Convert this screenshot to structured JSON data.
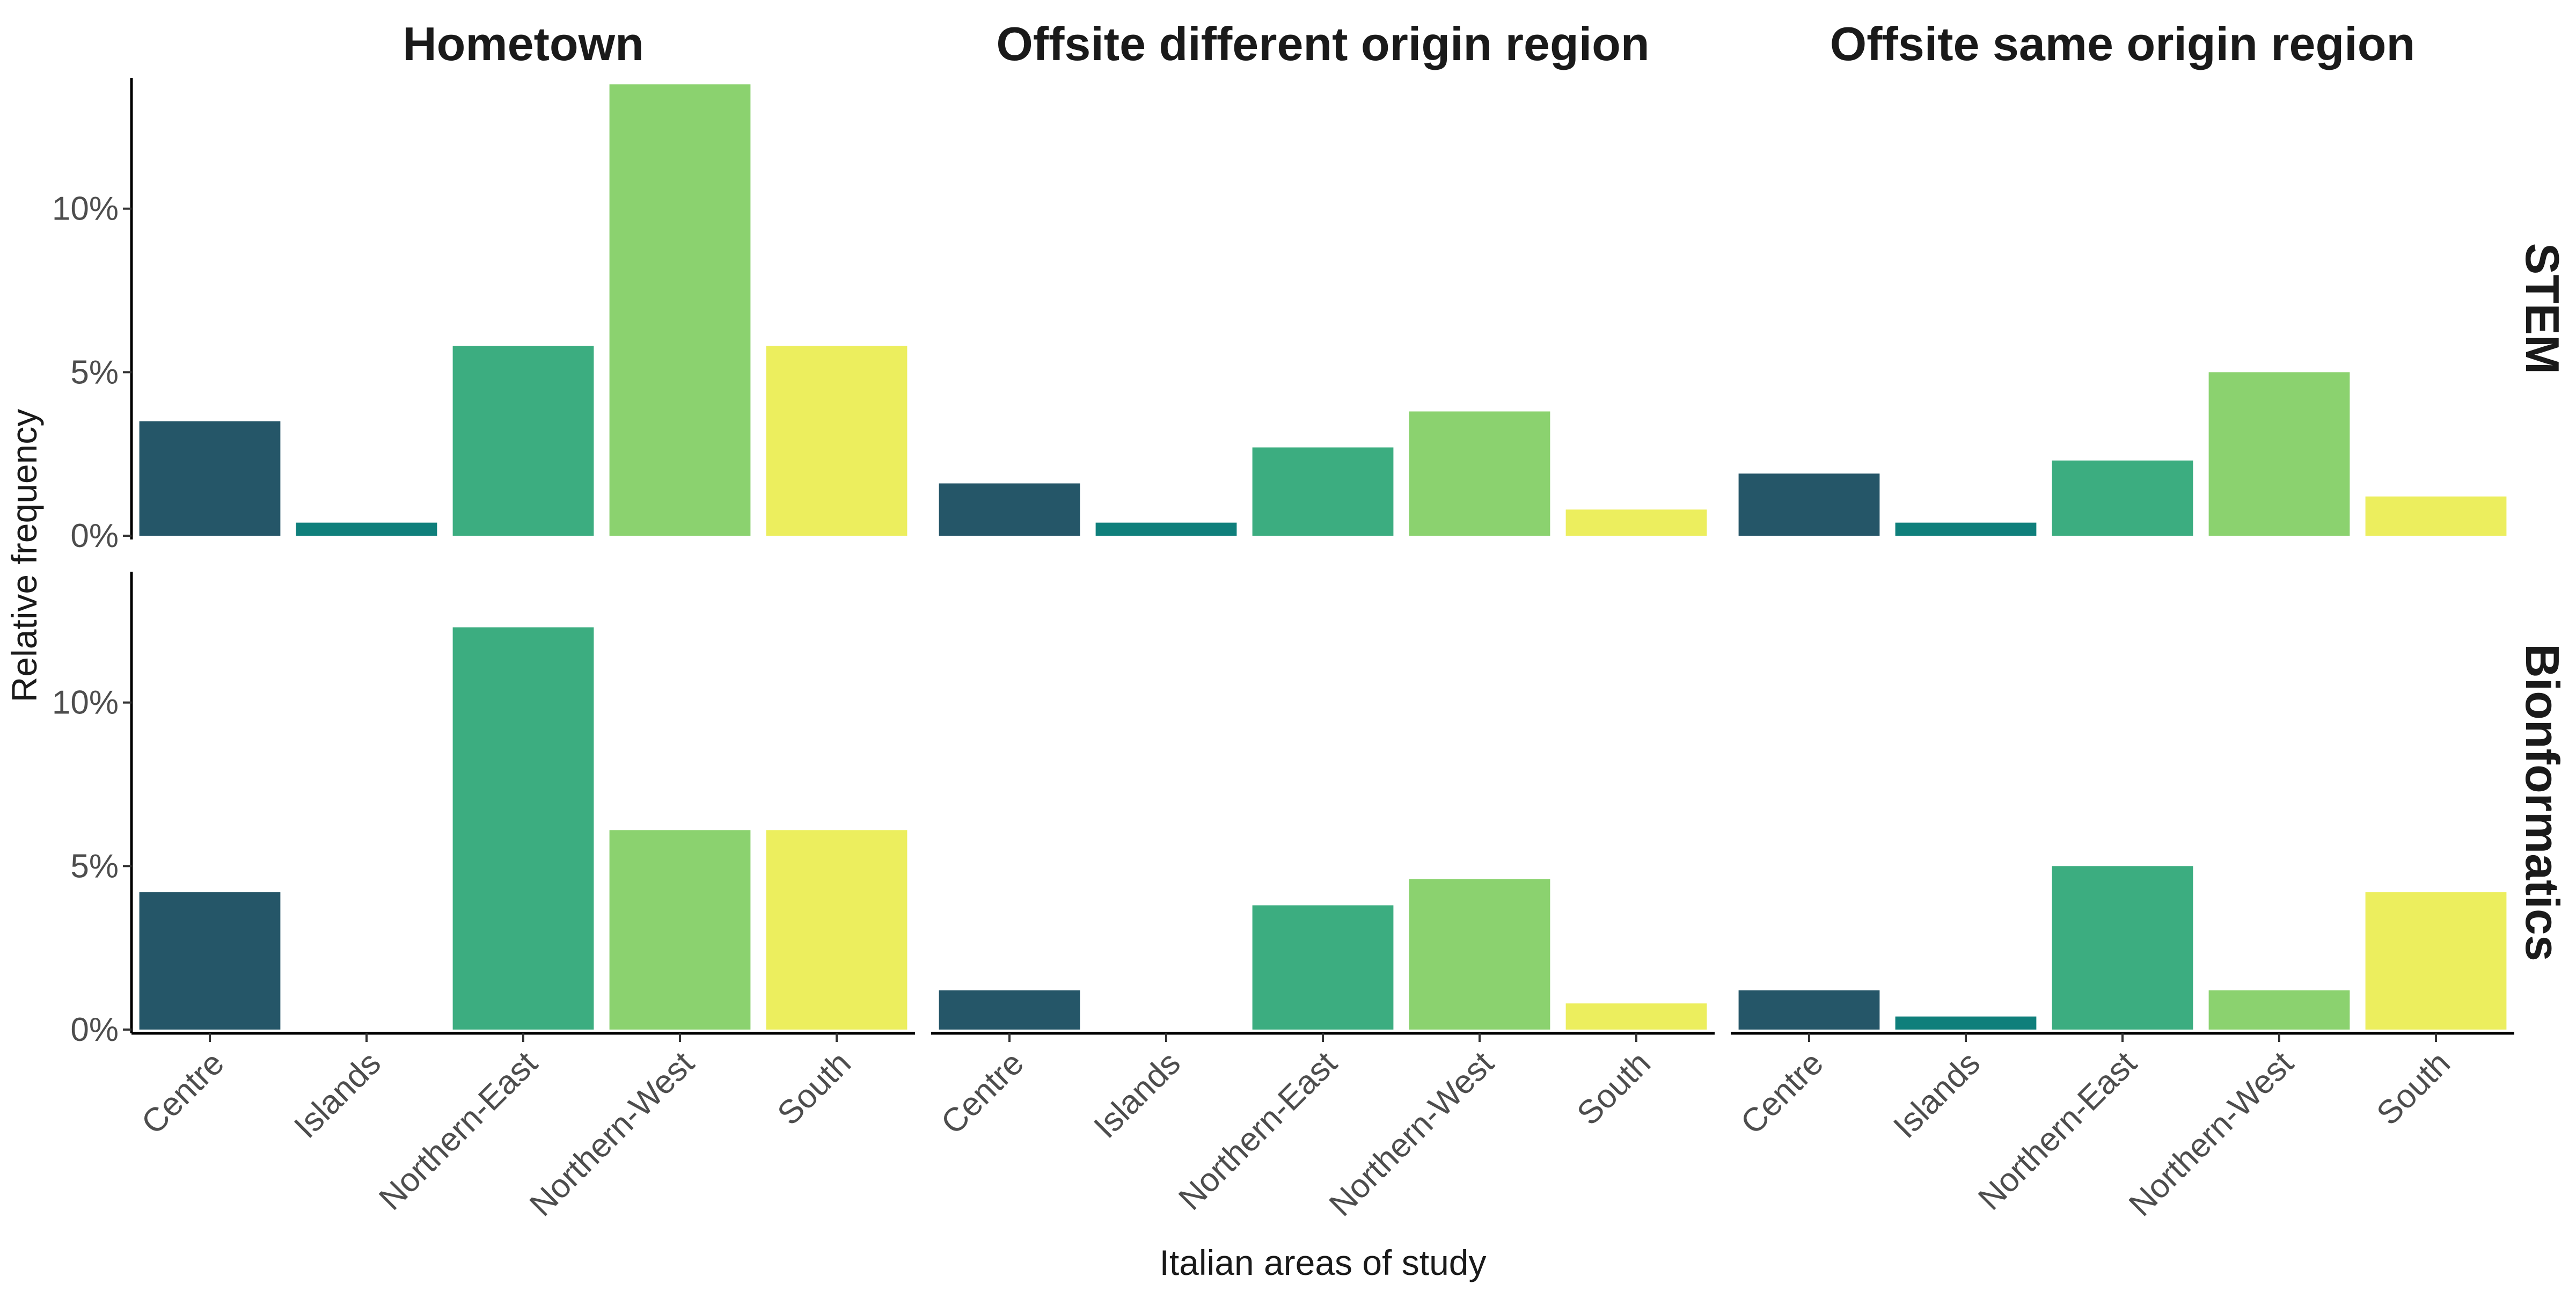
{
  "chart_data": {
    "type": "bar",
    "xlabel": "Italian areas of study",
    "ylabel": "Relative frequency",
    "ylim": [
      0,
      14
    ],
    "y_ticks": [
      {
        "value": 0,
        "label": "0%"
      },
      {
        "value": 5,
        "label": "5%"
      },
      {
        "value": 10,
        "label": "10%"
      }
    ],
    "categories": [
      "Centre",
      "Islands",
      "Northern-East",
      "Northern-West",
      "South"
    ],
    "category_colors": [
      "#255668",
      "#0f7f7b",
      "#3cad80",
      "#8bd26f",
      "#ecee5e"
    ],
    "columns": [
      "Hometown",
      "Offsite different origin region",
      "Offsite same origin region"
    ],
    "rows": [
      "STEM",
      "Bionformatics"
    ],
    "panels": [
      {
        "row": "STEM",
        "column": "Hometown",
        "values": [
          3.5,
          0.4,
          5.8,
          13.8,
          5.8
        ]
      },
      {
        "row": "STEM",
        "column": "Offsite different origin region",
        "values": [
          1.6,
          0.4,
          2.7,
          3.8,
          0.8
        ]
      },
      {
        "row": "STEM",
        "column": "Offsite same origin region",
        "values": [
          1.9,
          0.4,
          2.3,
          5.0,
          1.2
        ]
      },
      {
        "row": "Bionformatics",
        "column": "Hometown",
        "values": [
          4.2,
          0.0,
          12.3,
          6.1,
          6.1
        ]
      },
      {
        "row": "Bionformatics",
        "column": "Offsite different origin region",
        "values": [
          1.2,
          0.0,
          3.8,
          4.6,
          0.8
        ]
      },
      {
        "row": "Bionformatics",
        "column": "Offsite same origin region",
        "values": [
          1.2,
          0.4,
          5.0,
          1.2,
          4.2
        ]
      }
    ]
  }
}
